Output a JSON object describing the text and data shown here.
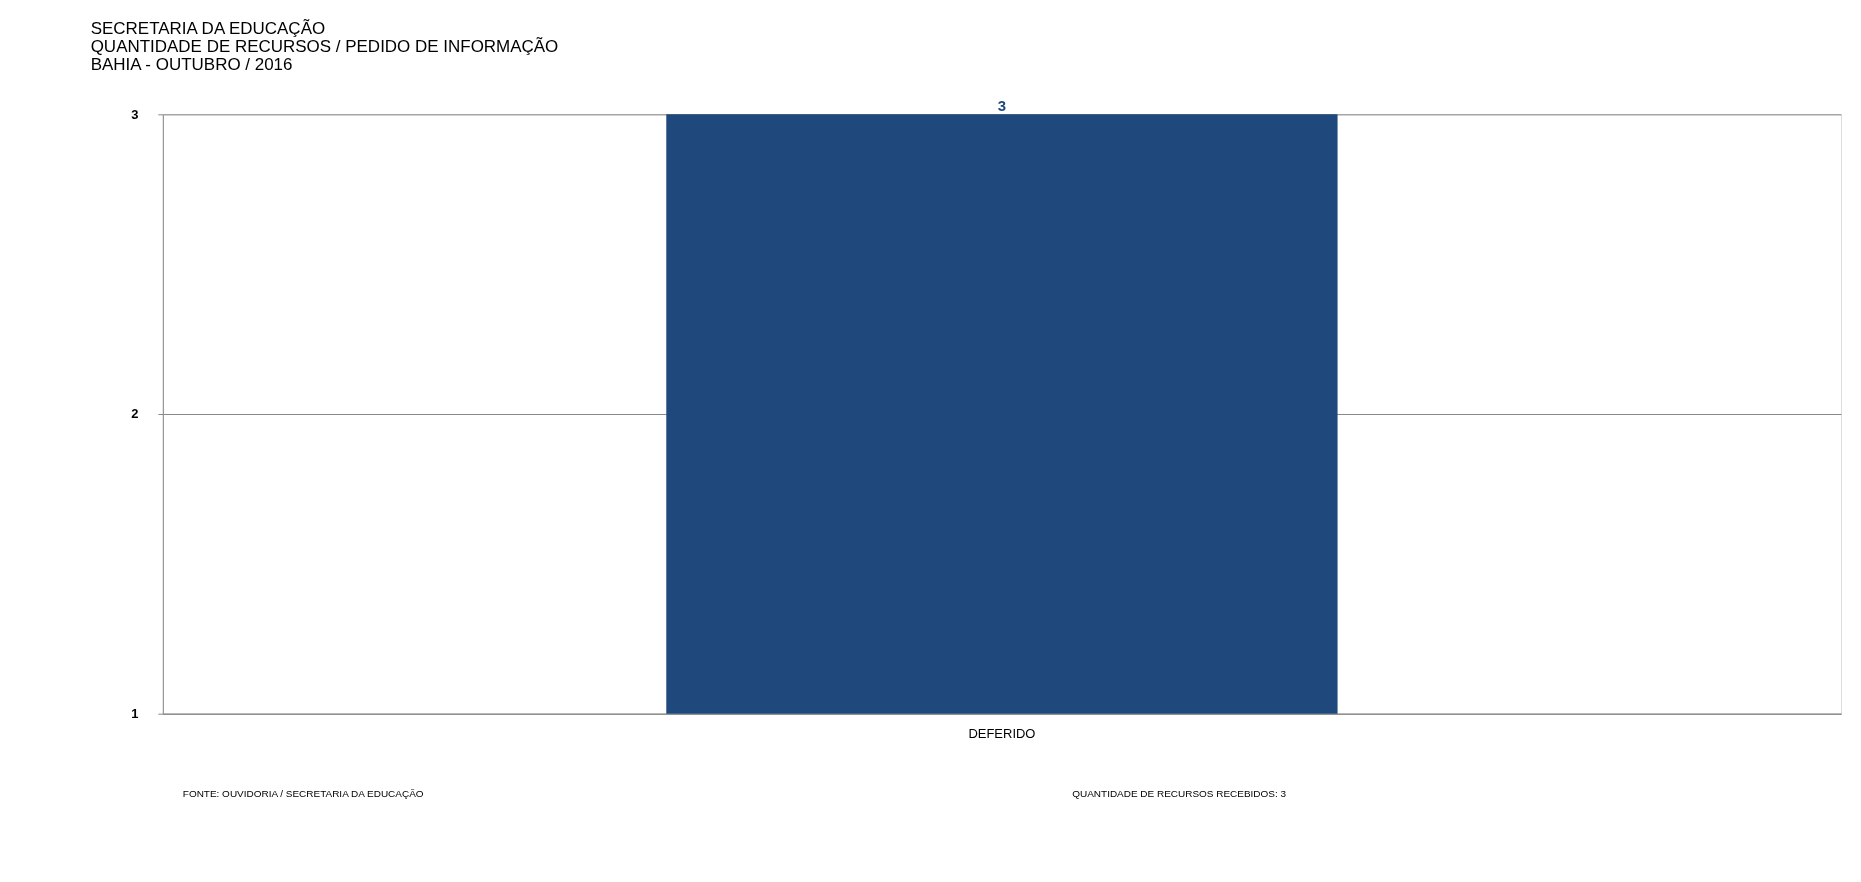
{
  "chart_data": {
    "type": "bar",
    "title": "SECRETARIA  DA EDUCAÇÃO\nQUANTIDADE  DE RECURSOS  / PEDIDO DE INFORMAÇÃO\nBAHIA - OUTUBRO  / 2016",
    "categories": [
      "DEFERIDO"
    ],
    "values": [
      3
    ],
    "color": "#1f497d",
    "ylim": [
      1,
      3
    ],
    "yticks": [
      1,
      2,
      3
    ],
    "grid": "y",
    "data_labels": true,
    "annotations": [
      "FONTE: OUVIDORIA / SECRETARIA DA EDUCAÇÃO",
      "QUANTIDADE DE RECURSOS RECEBIDOS:    3"
    ]
  }
}
